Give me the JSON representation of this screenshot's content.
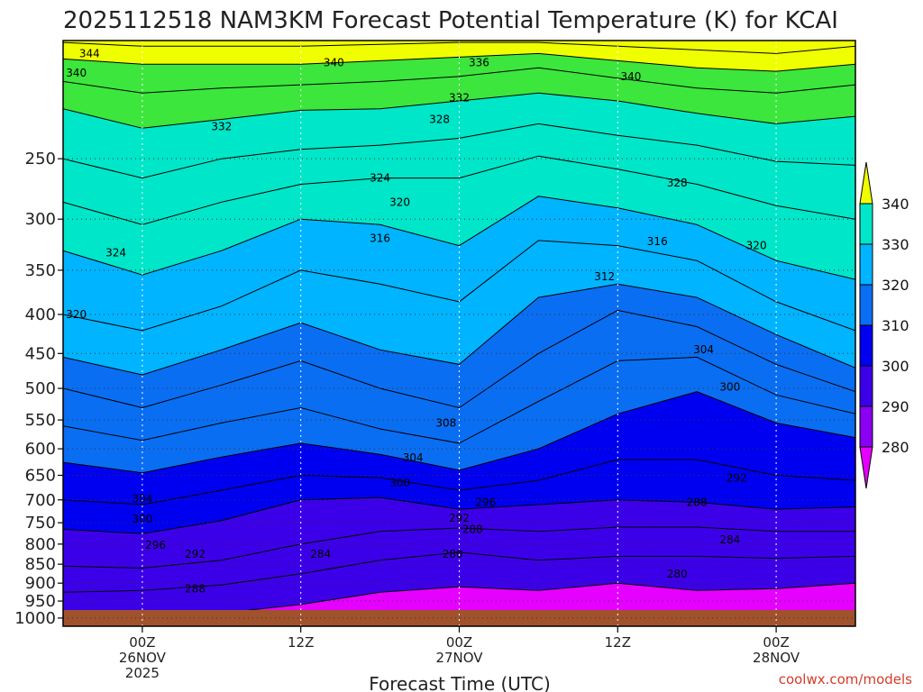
{
  "chart_data": {
    "type": "heatmap",
    "title": "2025112518 NAM3KM Forecast Potential Temperature (K) for KCAI",
    "xlabel": "Forecast Time (UTC)",
    "y_ticks": [
      250,
      300,
      350,
      400,
      450,
      500,
      550,
      600,
      650,
      700,
      750,
      800,
      850,
      900,
      950,
      1000
    ],
    "x_ticks": [
      {
        "hours": 6,
        "line1": "00Z",
        "line2": "26NOV",
        "line3": "2025"
      },
      {
        "hours": 18,
        "line1": "12Z",
        "line2": "",
        "line3": ""
      },
      {
        "hours": 30,
        "line1": "00Z",
        "line2": "27NOV",
        "line3": ""
      },
      {
        "hours": 42,
        "line1": "12Z",
        "line2": "",
        "line3": ""
      },
      {
        "hours": 54,
        "line1": "00Z",
        "line2": "28NOV",
        "line3": ""
      }
    ],
    "x_range_hours": [
      0,
      60
    ],
    "y_range_hpa": [
      1025,
      175
    ],
    "colorbar": {
      "levels": [
        280,
        290,
        300,
        310,
        320,
        330,
        340
      ],
      "colors": [
        "#e600ff",
        "#8a00f2",
        "#3c00e8",
        "#0000f0",
        "#0a6ef2",
        "#00b4ff",
        "#00e6c8",
        "#3ce63c",
        "#f0ff00"
      ]
    },
    "theta_k": [
      280,
      284,
      288,
      292,
      296,
      300,
      304,
      308,
      312,
      316,
      320,
      324,
      328,
      332,
      336,
      340,
      344
    ],
    "profiles": [
      {
        "hours": 0,
        "p": [
          1000,
          925,
          855,
          765,
          700,
          625,
          560,
          500,
          455,
          400,
          330,
          285,
          250,
          215,
          198,
          185,
          176
        ]
      },
      {
        "hours": 6,
        "p": [
          1000,
          920,
          860,
          775,
          710,
          645,
          585,
          530,
          480,
          420,
          355,
          305,
          265,
          228,
          205,
          188,
          178
        ]
      },
      {
        "hours": 12,
        "p": [
          985,
          905,
          840,
          745,
          680,
          615,
          555,
          495,
          445,
          390,
          330,
          285,
          250,
          222,
          202,
          188,
          178
        ]
      },
      {
        "hours": 18,
        "p": [
          960,
          875,
          800,
          700,
          650,
          590,
          530,
          460,
          410,
          350,
          300,
          270,
          243,
          216,
          200,
          188,
          178
        ]
      },
      {
        "hours": 24,
        "p": [
          925,
          840,
          770,
          695,
          655,
          610,
          565,
          500,
          445,
          365,
          305,
          265,
          240,
          215,
          198,
          186,
          177
        ]
      },
      {
        "hours": 30,
        "p": [
          910,
          820,
          762,
          720,
          680,
          640,
          590,
          530,
          465,
          385,
          325,
          265,
          235,
          210,
          195,
          184,
          176
        ]
      },
      {
        "hours": 36,
        "p": [
          920,
          840,
          770,
          710,
          660,
          600,
          520,
          450,
          380,
          320,
          280,
          248,
          225,
          205,
          190,
          182,
          176
        ]
      },
      {
        "hours": 42,
        "p": [
          900,
          830,
          760,
          700,
          620,
          540,
          460,
          395,
          365,
          325,
          290,
          258,
          233,
          210,
          196,
          186,
          178
        ]
      },
      {
        "hours": 48,
        "p": [
          920,
          830,
          760,
          705,
          620,
          505,
          455,
          415,
          380,
          340,
          305,
          270,
          240,
          218,
          202,
          190,
          180
        ]
      },
      {
        "hours": 54,
        "p": [
          915,
          835,
          770,
          720,
          650,
          555,
          510,
          465,
          425,
          385,
          340,
          288,
          252,
          225,
          205,
          192,
          182
        ]
      },
      {
        "hours": 60,
        "p": [
          900,
          830,
          770,
          715,
          660,
          580,
          540,
          505,
          470,
          420,
          360,
          300,
          255,
          220,
          200,
          188,
          178
        ]
      }
    ],
    "contour_labels": [
      {
        "value": "344",
        "hours": 2.0,
        "p": 182
      },
      {
        "value": "340",
        "hours": 1.0,
        "p": 193
      },
      {
        "value": "340",
        "hours": 20.5,
        "p": 187
      },
      {
        "value": "336",
        "hours": 31.5,
        "p": 187
      },
      {
        "value": "332",
        "hours": 30.0,
        "p": 208
      },
      {
        "value": "328",
        "hours": 28.5,
        "p": 222
      },
      {
        "value": "332",
        "hours": 12.0,
        "p": 227
      },
      {
        "value": "340",
        "hours": 43.0,
        "p": 195
      },
      {
        "value": "328",
        "hours": 46.5,
        "p": 269
      },
      {
        "value": "324",
        "hours": 24.0,
        "p": 265
      },
      {
        "value": "320",
        "hours": 25.5,
        "p": 285
      },
      {
        "value": "316",
        "hours": 24.0,
        "p": 318
      },
      {
        "value": "316",
        "hours": 45.0,
        "p": 321
      },
      {
        "value": "320",
        "hours": 52.5,
        "p": 325
      },
      {
        "value": "312",
        "hours": 41.0,
        "p": 357
      },
      {
        "value": "324",
        "hours": 4.0,
        "p": 332
      },
      {
        "value": "320",
        "hours": 1.0,
        "p": 400
      },
      {
        "value": "304",
        "hours": 48.5,
        "p": 445
      },
      {
        "value": "300",
        "hours": 50.5,
        "p": 498
      },
      {
        "value": "308",
        "hours": 29.0,
        "p": 555
      },
      {
        "value": "304",
        "hours": 26.5,
        "p": 616
      },
      {
        "value": "300",
        "hours": 25.5,
        "p": 665
      },
      {
        "value": "292",
        "hours": 51.0,
        "p": 655
      },
      {
        "value": "304",
        "hours": 6.0,
        "p": 698
      },
      {
        "value": "296",
        "hours": 32.0,
        "p": 705
      },
      {
        "value": "288",
        "hours": 48.0,
        "p": 705
      },
      {
        "value": "300",
        "hours": 6.0,
        "p": 742
      },
      {
        "value": "292",
        "hours": 30.0,
        "p": 740
      },
      {
        "value": "288",
        "hours": 31.0,
        "p": 765
      },
      {
        "value": "296",
        "hours": 7.0,
        "p": 802
      },
      {
        "value": "284",
        "hours": 19.5,
        "p": 825
      },
      {
        "value": "284",
        "hours": 50.5,
        "p": 790
      },
      {
        "value": "292",
        "hours": 10.0,
        "p": 825
      },
      {
        "value": "280",
        "hours": 29.5,
        "p": 825
      },
      {
        "value": "280",
        "hours": 46.5,
        "p": 875
      },
      {
        "value": "288",
        "hours": 10.0,
        "p": 915
      }
    ]
  },
  "credit": "coolwx.com/models"
}
